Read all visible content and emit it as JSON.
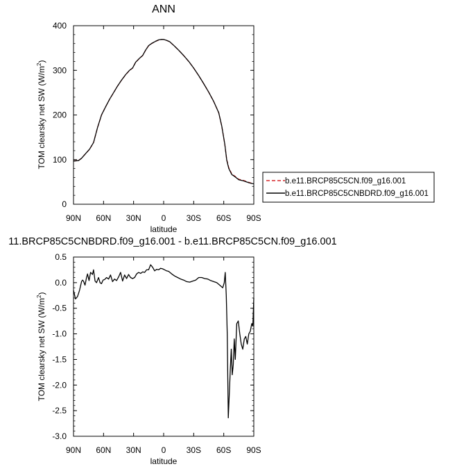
{
  "chart_data": [
    {
      "type": "line",
      "title": "ANN",
      "xlabel": "latitude",
      "ylabel_main": "TOM clearsky net SW (W/m",
      "ylabel_sup": "2",
      "ylabel_close": ")",
      "xlim": [
        90,
        -90
      ],
      "ylim": [
        0,
        400
      ],
      "x_ticks": [
        {
          "value": 90,
          "label": "90N"
        },
        {
          "value": 60,
          "label": "60N"
        },
        {
          "value": 30,
          "label": "30N"
        },
        {
          "value": 0,
          "label": "0"
        },
        {
          "value": -30,
          "label": "30S"
        },
        {
          "value": -60,
          "label": "60S"
        },
        {
          "value": -90,
          "label": "90S"
        }
      ],
      "y_ticks": [
        {
          "value": 0,
          "label": "0"
        },
        {
          "value": 100,
          "label": "100"
        },
        {
          "value": 200,
          "label": "200"
        },
        {
          "value": 300,
          "label": "300"
        },
        {
          "value": 400,
          "label": "400"
        }
      ],
      "legend_position": "right",
      "series": [
        {
          "name": "b.e11.BRCP85C5CN.f09_g16.001",
          "color": "#d62728",
          "dash": "dashed",
          "x": [
            90,
            85,
            82,
            78,
            74,
            70,
            66,
            62,
            58,
            54,
            50,
            46,
            42,
            38,
            34,
            31,
            28,
            24,
            21,
            18,
            15,
            12,
            8,
            5,
            2,
            0,
            -3,
            -6,
            -10,
            -15,
            -20,
            -25,
            -30,
            -35,
            -40,
            -45,
            -50,
            -55,
            -58,
            -61,
            -63,
            -65,
            -68,
            -71,
            -75,
            -80,
            -85,
            -88,
            -90
          ],
          "y": [
            97,
            98,
            103,
            113,
            123,
            138,
            172,
            200,
            218,
            235,
            250,
            265,
            278,
            290,
            300,
            305,
            318,
            327,
            333,
            345,
            355,
            360,
            365,
            368,
            369,
            369,
            367,
            364,
            356,
            345,
            333,
            320,
            305,
            288,
            270,
            251,
            230,
            205,
            175,
            135,
            100,
            82,
            68,
            63,
            56,
            53,
            49,
            47,
            46
          ]
        },
        {
          "name": "b.e11.BRCP85C5CNBDRD.f09_g16.001",
          "color": "#000000",
          "dash": "solid",
          "x": [
            90,
            85,
            82,
            78,
            74,
            70,
            66,
            62,
            58,
            54,
            50,
            46,
            42,
            38,
            34,
            31,
            28,
            24,
            21,
            18,
            15,
            12,
            8,
            5,
            2,
            0,
            -3,
            -6,
            -10,
            -15,
            -20,
            -25,
            -30,
            -35,
            -40,
            -45,
            -50,
            -55,
            -58,
            -61,
            -63,
            -65,
            -68,
            -71,
            -75,
            -80,
            -85,
            -88,
            -90
          ],
          "y": [
            96.8,
            97.8,
            103.1,
            113.1,
            123.2,
            138.2,
            172.1,
            200.1,
            218.1,
            235.2,
            250.1,
            265.1,
            278.2,
            290.2,
            300.2,
            305.2,
            318.2,
            327.3,
            333.2,
            345.3,
            355.3,
            360.3,
            365.2,
            368.2,
            369.3,
            369.2,
            367.2,
            364.2,
            356.1,
            345.1,
            333.1,
            320.1,
            305.1,
            288.1,
            270.1,
            251.1,
            230.2,
            205.1,
            175.1,
            135.2,
            98.5,
            80.1,
            66.6,
            62.0,
            55.0,
            52.2,
            48.2,
            46.5,
            45.8
          ]
        }
      ]
    },
    {
      "type": "line",
      "title": "11.BRCP85C5CNBDRD.f09_g16.001 - b.e11.BRCP85C5CN.f09_g16.001",
      "xlabel": "latitude",
      "ylabel_main": "TOM clearsky net SW (W/m",
      "ylabel_sup": "2",
      "ylabel_close": ")",
      "xlim": [
        90,
        -90
      ],
      "ylim": [
        -3.0,
        0.5
      ],
      "x_ticks": [
        {
          "value": 90,
          "label": "90N"
        },
        {
          "value": 60,
          "label": "60N"
        },
        {
          "value": 30,
          "label": "30N"
        },
        {
          "value": 0,
          "label": "0"
        },
        {
          "value": -30,
          "label": "30S"
        },
        {
          "value": -60,
          "label": "60S"
        },
        {
          "value": -90,
          "label": "90S"
        }
      ],
      "y_ticks": [
        {
          "value": 0.5,
          "label": "0.5"
        },
        {
          "value": 0.0,
          "label": "0.0"
        },
        {
          "value": -0.5,
          "label": "-0.5"
        },
        {
          "value": -1.0,
          "label": "-1.0"
        },
        {
          "value": -1.5,
          "label": "-1.5"
        },
        {
          "value": -2.0,
          "label": "-2.0"
        },
        {
          "value": -2.5,
          "label": "-2.5"
        },
        {
          "value": -3.0,
          "label": "-3.0"
        }
      ],
      "series": [
        {
          "color": "#000000",
          "dash": "solid",
          "x": [
            90,
            88,
            86,
            84,
            82,
            81,
            80,
            78.5,
            77,
            76,
            74.5,
            73,
            71,
            70,
            68.5,
            67,
            65,
            63.5,
            62,
            60.5,
            59,
            57,
            55,
            53,
            51,
            49,
            47,
            45,
            43,
            41,
            39,
            37,
            35,
            33,
            31,
            29,
            27,
            25,
            23,
            21,
            19,
            17,
            15,
            13,
            11,
            9,
            7,
            5,
            3,
            1,
            -1,
            -3,
            -5,
            -8,
            -11,
            -14,
            -17,
            -20,
            -23,
            -26,
            -29,
            -32,
            -35,
            -38,
            -41,
            -44,
            -47,
            -50,
            -53,
            -56,
            -59,
            -60.5,
            -61.5,
            -62.5,
            -63.5,
            -64.5,
            -65.5,
            -66.5,
            -67.5,
            -68.5,
            -69.5,
            -70.5,
            -71.5,
            -73,
            -74.5,
            -76,
            -77.5,
            -79,
            -80.5,
            -82,
            -83.5,
            -85,
            -86.5,
            -88,
            -89,
            -90
          ],
          "y": [
            -0.15,
            -0.32,
            -0.27,
            -0.15,
            0.02,
            0.05,
            0.03,
            -0.05,
            0.1,
            0.17,
            0.04,
            0.2,
            0.16,
            0.25,
            0.03,
            0.0,
            0.1,
            0.0,
            -0.02,
            0.05,
            0.06,
            0.1,
            0.07,
            0.15,
            0.02,
            0.07,
            0.04,
            0.11,
            0.2,
            0.03,
            0.15,
            0.08,
            0.16,
            0.1,
            0.08,
            0.1,
            0.17,
            0.2,
            0.18,
            0.21,
            0.2,
            0.25,
            0.25,
            0.35,
            0.3,
            0.23,
            0.26,
            0.25,
            0.28,
            0.27,
            0.25,
            0.23,
            0.22,
            0.17,
            0.13,
            0.1,
            0.07,
            0.05,
            0.02,
            0.01,
            0.03,
            0.05,
            0.1,
            0.1,
            0.08,
            0.07,
            0.04,
            0.02,
            0.0,
            -0.05,
            -0.1,
            0.0,
            0.2,
            -0.25,
            -1.0,
            -2.64,
            -2.2,
            -1.7,
            -1.3,
            -1.8,
            -1.6,
            -1.1,
            -1.5,
            -0.8,
            -0.75,
            -1.0,
            -1.2,
            -1.3,
            -1.1,
            -1.05,
            -1.2,
            -1.0,
            -0.95,
            -0.8,
            -0.85,
            -0.3
          ]
        }
      ]
    }
  ]
}
